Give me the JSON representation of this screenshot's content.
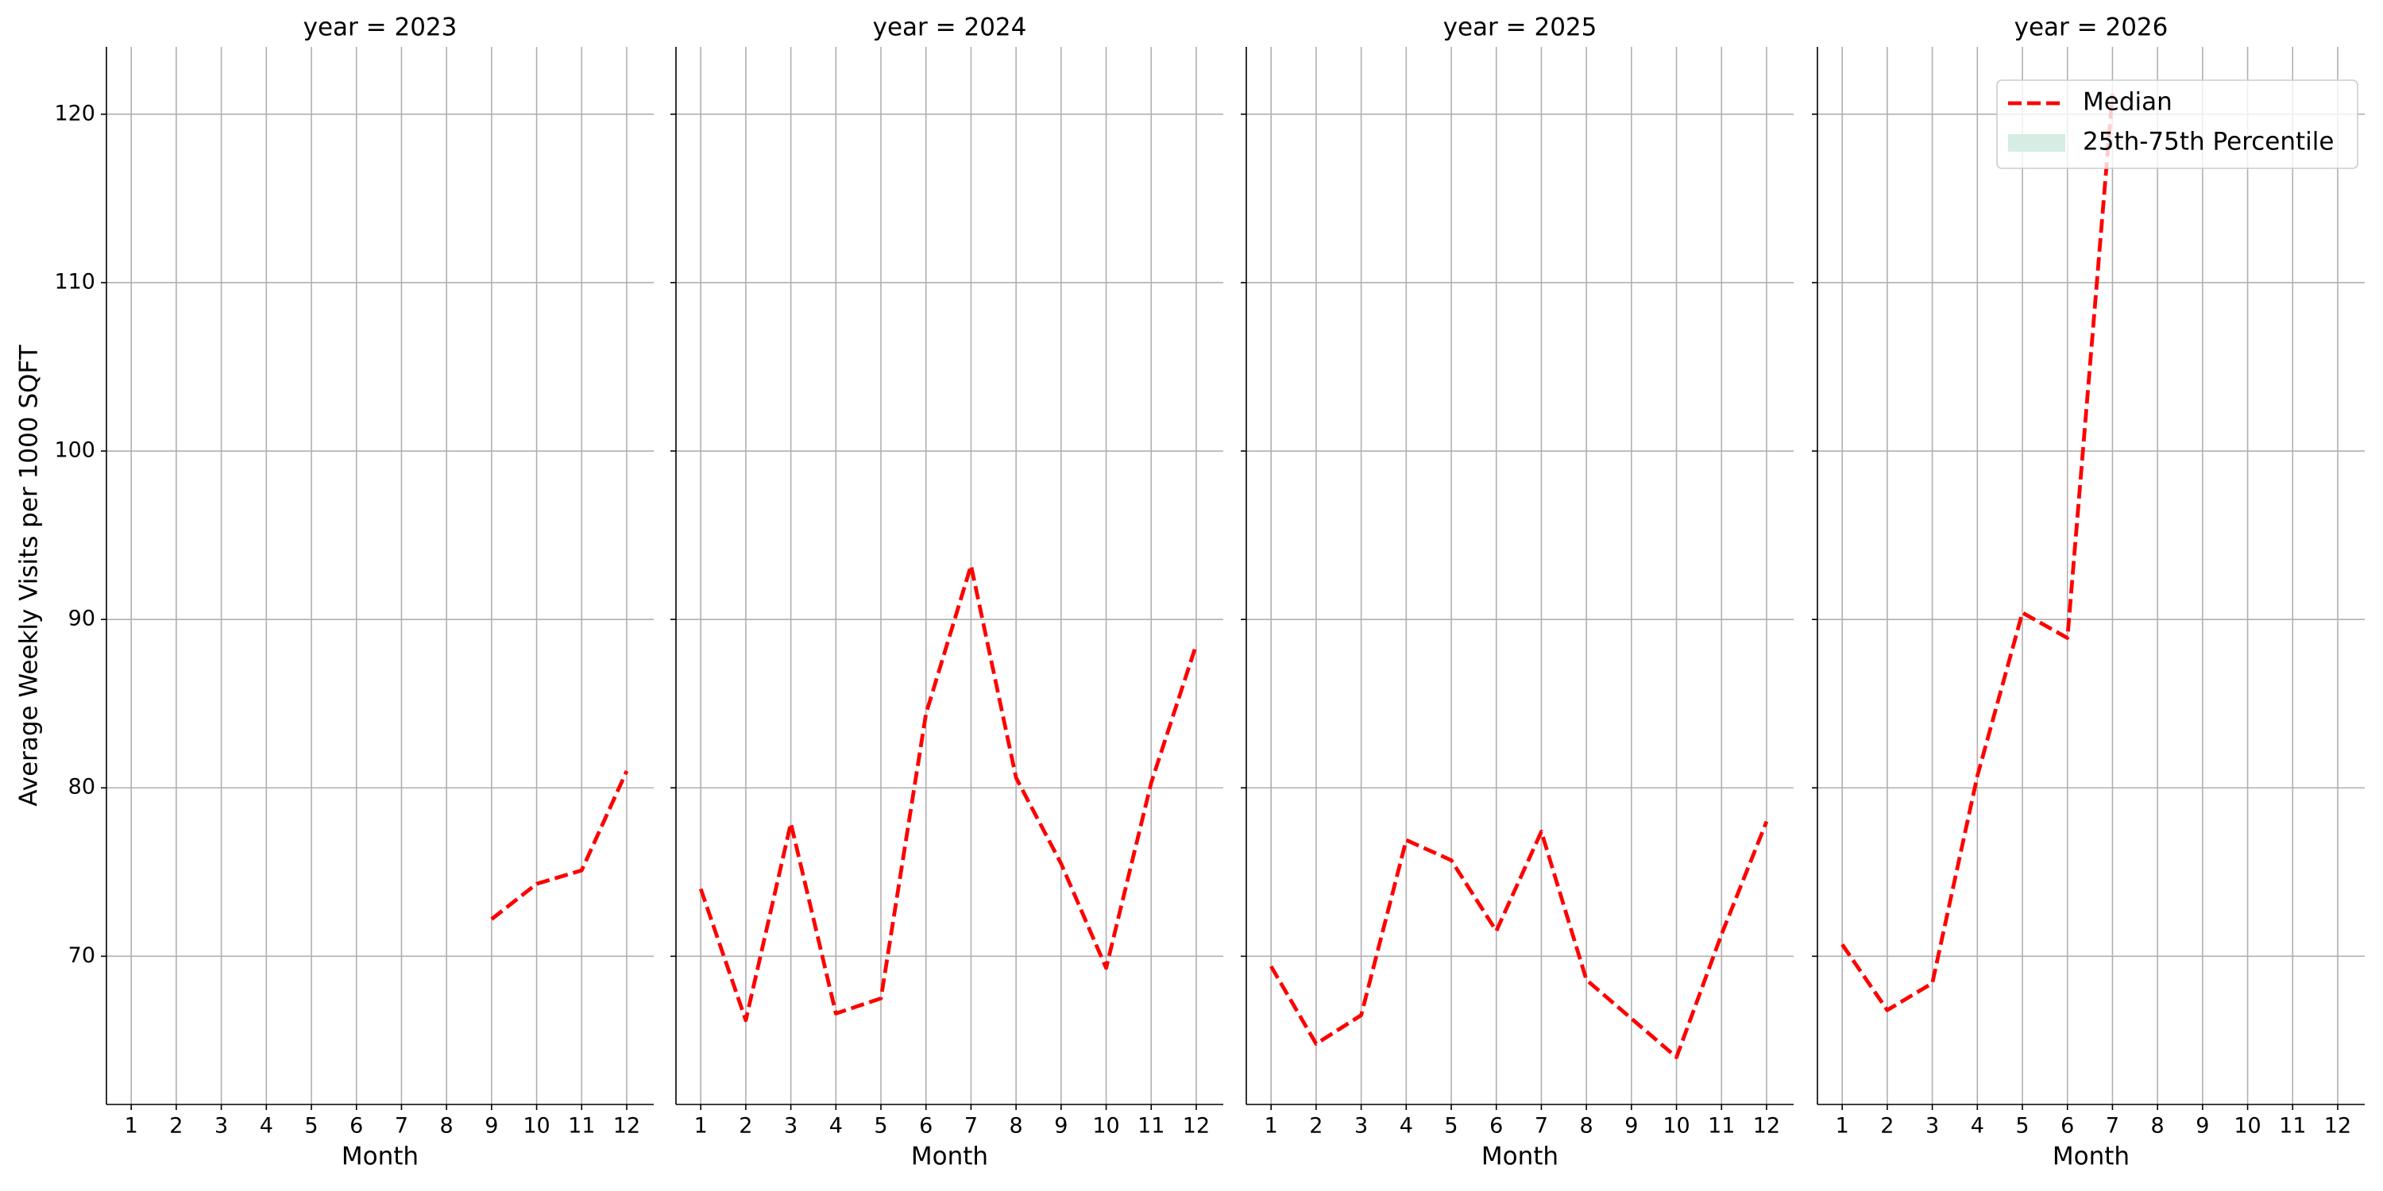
{
  "chart_data": [
    {
      "type": "line",
      "title": "year = 2023",
      "x_label": "Month",
      "y_label": "Average Weekly Visits per 1000 SQFT",
      "x": [
        1,
        2,
        3,
        4,
        5,
        6,
        7,
        8,
        9,
        10,
        11,
        12
      ],
      "series": [
        {
          "color": "#ff0000",
          "dashed": true,
          "values": [
            null,
            null,
            null,
            null,
            null,
            null,
            null,
            null,
            72.2,
            74.3,
            75.1,
            81.0
          ]
        }
      ],
      "xlim": [
        0.45,
        12.6
      ],
      "ylim": [
        61.2,
        124.0
      ],
      "xticks": [
        1,
        2,
        3,
        4,
        5,
        6,
        7,
        8,
        9,
        10,
        11,
        12
      ],
      "yticks": [
        70,
        80,
        90,
        100,
        110,
        120
      ],
      "grid": true
    },
    {
      "type": "line",
      "title": "year = 2024",
      "x_label": "Month",
      "x": [
        1,
        2,
        3,
        4,
        5,
        6,
        7,
        8,
        9,
        10,
        11,
        12
      ],
      "series": [
        {
          "color": "#ff0000",
          "dashed": true,
          "values": [
            74.0,
            66.2,
            77.9,
            66.6,
            67.5,
            84.4,
            93.2,
            80.6,
            75.5,
            69.3,
            80.3,
            88.5
          ]
        }
      ],
      "xlim": [
        0.45,
        12.6
      ],
      "ylim": [
        61.2,
        124.0
      ],
      "xticks": [
        1,
        2,
        3,
        4,
        5,
        6,
        7,
        8,
        9,
        10,
        11,
        12
      ],
      "yticks": [
        70,
        80,
        90,
        100,
        110,
        120
      ],
      "grid": true
    },
    {
      "type": "line",
      "title": "year = 2025",
      "x_label": "Month",
      "x": [
        1,
        2,
        3,
        4,
        5,
        6,
        7,
        8,
        9,
        10,
        11,
        12
      ],
      "series": [
        {
          "color": "#ff0000",
          "dashed": true,
          "values": [
            69.4,
            64.8,
            66.5,
            76.9,
            75.7,
            71.5,
            77.4,
            68.6,
            66.3,
            64.0,
            71.3,
            78.0
          ]
        }
      ],
      "xlim": [
        0.45,
        12.6
      ],
      "ylim": [
        61.2,
        124.0
      ],
      "xticks": [
        1,
        2,
        3,
        4,
        5,
        6,
        7,
        8,
        9,
        10,
        11,
        12
      ],
      "yticks": [
        70,
        80,
        90,
        100,
        110,
        120
      ],
      "grid": true
    },
    {
      "type": "line",
      "title": "year = 2026",
      "x_label": "Month",
      "x": [
        1,
        2,
        3,
        4,
        5,
        6,
        7,
        8,
        9,
        10,
        11,
        12
      ],
      "series": [
        {
          "name": "Median",
          "color": "#ff0000",
          "dashed": true,
          "values": [
            70.7,
            66.8,
            68.4,
            80.7,
            90.4,
            88.9,
            121.2,
            null,
            null,
            null,
            null,
            null
          ]
        }
      ],
      "bands": [
        {
          "name": "25th-75th Percentile",
          "color": "#d5ede3"
        }
      ],
      "legend": "upper right",
      "xlim": [
        0.45,
        12.6
      ],
      "ylim": [
        61.2,
        124.0
      ],
      "xticks": [
        1,
        2,
        3,
        4,
        5,
        6,
        7,
        8,
        9,
        10,
        11,
        12
      ],
      "yticks": [
        70,
        80,
        90,
        100,
        110,
        120
      ],
      "grid": true
    }
  ]
}
